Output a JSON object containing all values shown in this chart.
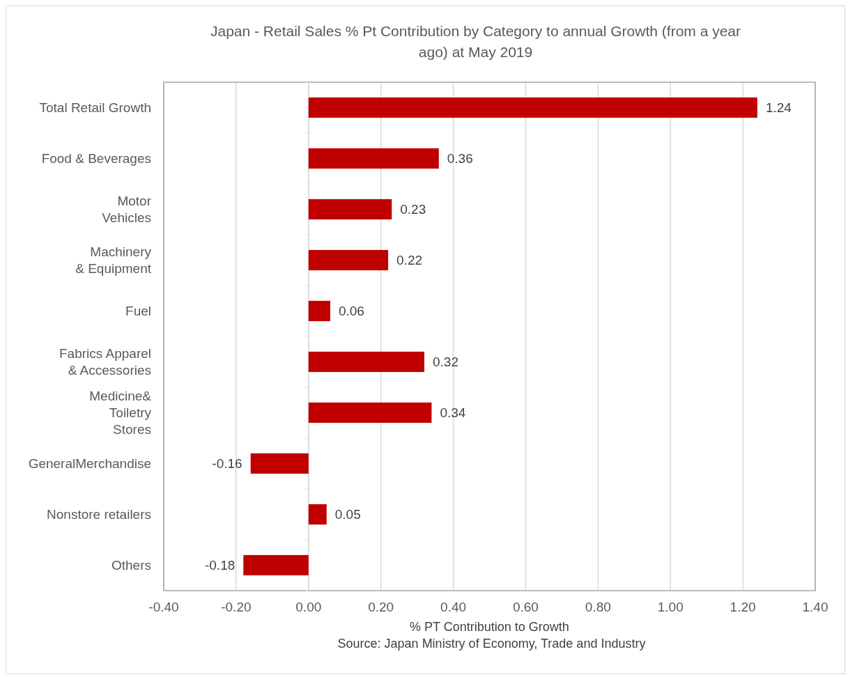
{
  "chart_data": {
    "type": "bar",
    "orientation": "horizontal",
    "title": "Japan - Retail Sales % Pt Contribution by Category to annual Growth (from a year ago) at May 2019",
    "categories": [
      "Total Retail Growth",
      "Food & Beverages",
      "Motor\nVehicles",
      "Machinery\n& Equipment",
      "Fuel",
      "Fabrics Apparel\n& Accessories",
      "Medicine&\nToiletry\nStores",
      "GeneralMerchandise",
      "Nonstore retailers",
      "Others"
    ],
    "values": [
      1.24,
      0.36,
      0.23,
      0.22,
      0.06,
      0.32,
      0.34,
      -0.16,
      0.05,
      -0.18
    ],
    "color": "#c00000",
    "data_labels": true,
    "xlim": [
      -0.4,
      1.4
    ],
    "xticks": [
      {
        "value": -0.4,
        "label": "-0.40"
      },
      {
        "value": -0.2,
        "label": "-0.20"
      },
      {
        "value": 0,
        "label": "0.00"
      },
      {
        "value": 0.2,
        "label": "0.20"
      },
      {
        "value": 0.4,
        "label": "0.40"
      },
      {
        "value": 0.6,
        "label": "0.60"
      },
      {
        "value": 0.8,
        "label": "0.80"
      },
      {
        "value": 1.0,
        "label": "1.00"
      },
      {
        "value": 1.2,
        "label": "1.20"
      },
      {
        "value": 1.4,
        "label": "1.40"
      }
    ],
    "grid": "x",
    "xlabel": "% PT Contribution to Growth",
    "annotations": [
      "Source: Japan Ministry of Economy, Trade and Industry"
    ]
  }
}
